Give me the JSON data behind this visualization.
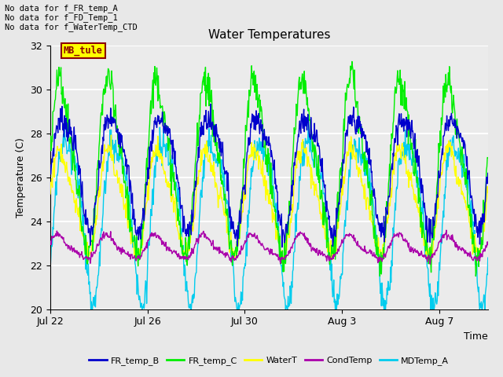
{
  "title": "Water Temperatures",
  "xlabel": "Time",
  "ylabel": "Temperature (C)",
  "ylim": [
    20,
    32
  ],
  "yticks": [
    20,
    22,
    24,
    26,
    28,
    30,
    32
  ],
  "xtick_labels": [
    "Jul 22",
    "Jul 26",
    "Jul 30",
    "Aug 3",
    "Aug 7"
  ],
  "xtick_positions": [
    0,
    4,
    8,
    12,
    16
  ],
  "no_data_lines": [
    "No data for f_FR_temp_A",
    "No data for f_FD_Temp_1",
    "No data for f_WaterTemp_CTD"
  ],
  "mb_tule_label": "MB_tule",
  "legend_entries": [
    "FR_temp_B",
    "FR_temp_C",
    "WaterT",
    "CondTemp",
    "MDTemp_A"
  ],
  "colors": {
    "FR_temp_B": "#0000CC",
    "FR_temp_C": "#00EE00",
    "WaterT": "#FFFF00",
    "CondTemp": "#AA00AA",
    "MDTemp_A": "#00CCEE"
  },
  "background_color": "#E8E8E8",
  "plot_bg_color": "#EBEBEB",
  "grid_color": "#FFFFFF",
  "n_days": 18,
  "samples_per_day": 48
}
